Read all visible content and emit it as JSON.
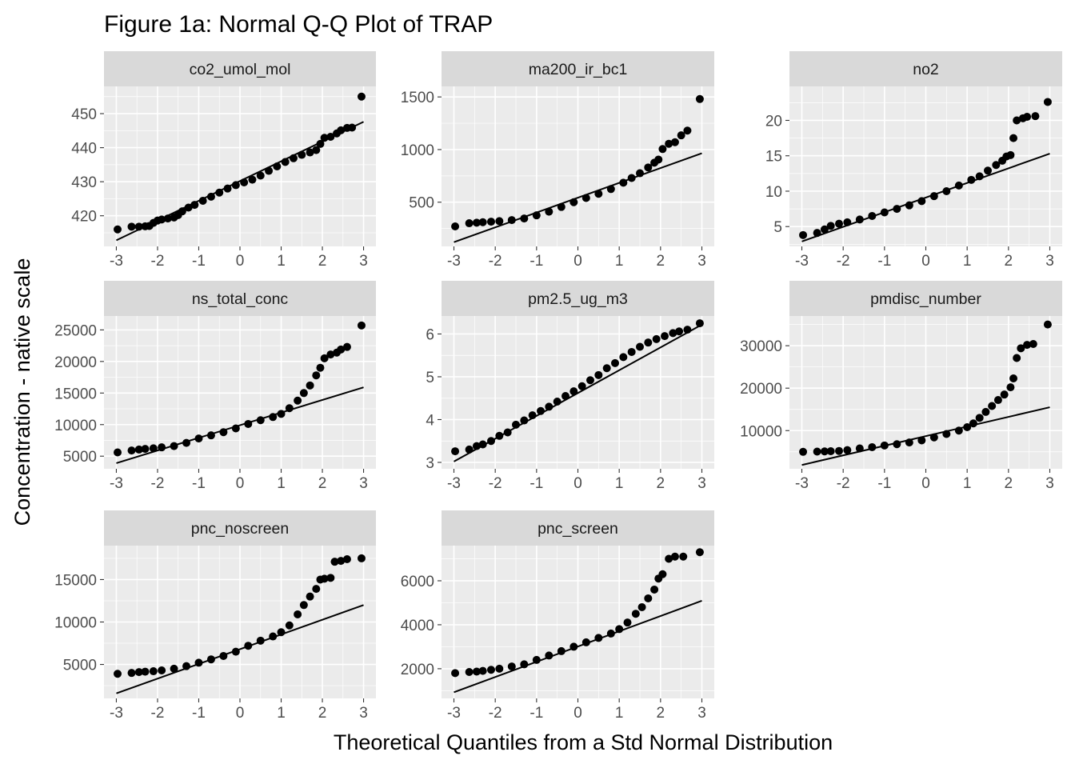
{
  "chart_data": {
    "type": "scatter",
    "title": "Figure 1a: Normal Q-Q Plot of TRAP",
    "xlabel": "Theoretical Quantiles from a Std Normal Distribution",
    "ylabel": "Concentration - native scale",
    "grid": true,
    "xlim": [
      -3.3,
      3.3
    ],
    "x_ticks": [
      -3,
      -2,
      -1,
      0,
      1,
      2,
      3
    ],
    "panels": [
      {
        "name": "co2_umol_mol",
        "ylim": [
          411,
          458
        ],
        "y_ticks": [
          420,
          430,
          440,
          450
        ],
        "ref_line": [
          [
            -3,
            412.8
          ],
          [
            3,
            447.6
          ]
        ],
        "points": [
          [
            -2.97,
            416
          ],
          [
            -2.63,
            416.8
          ],
          [
            -2.45,
            416.8
          ],
          [
            -2.3,
            416.9
          ],
          [
            -2.2,
            417
          ],
          [
            -2.1,
            417.9
          ],
          [
            -2.0,
            418.6
          ],
          [
            -1.9,
            418.9
          ],
          [
            -1.75,
            419.2
          ],
          [
            -1.6,
            419.5
          ],
          [
            -1.5,
            420.2
          ],
          [
            -1.4,
            421.3
          ],
          [
            -1.25,
            422.4
          ],
          [
            -1.1,
            423.2
          ],
          [
            -0.9,
            424.4
          ],
          [
            -0.7,
            425.6
          ],
          [
            -0.5,
            426.8
          ],
          [
            -0.3,
            428
          ],
          [
            -0.1,
            429
          ],
          [
            0.1,
            429.8
          ],
          [
            0.3,
            430.6
          ],
          [
            0.5,
            431.8
          ],
          [
            0.7,
            433.2
          ],
          [
            0.9,
            434.5
          ],
          [
            1.1,
            435.8
          ],
          [
            1.3,
            436.9
          ],
          [
            1.5,
            437.9
          ],
          [
            1.7,
            438.6
          ],
          [
            1.85,
            439.3
          ],
          [
            1.95,
            441.1
          ],
          [
            2.05,
            442.9
          ],
          [
            2.2,
            443.2
          ],
          [
            2.35,
            444.2
          ],
          [
            2.45,
            445.1
          ],
          [
            2.6,
            445.8
          ],
          [
            2.72,
            445.9
          ],
          [
            2.95,
            455
          ]
        ]
      },
      {
        "name": "ma200_ir_bc1",
        "ylim": [
          80,
          1600
        ],
        "y_ticks": [
          500,
          1000,
          1500
        ],
        "ref_line": [
          [
            -3,
            120
          ],
          [
            3,
            965
          ]
        ],
        "points": [
          [
            -2.97,
            270
          ],
          [
            -2.63,
            300
          ],
          [
            -2.45,
            305
          ],
          [
            -2.3,
            310
          ],
          [
            -2.1,
            315
          ],
          [
            -1.9,
            320
          ],
          [
            -1.6,
            330
          ],
          [
            -1.3,
            345
          ],
          [
            -1.0,
            375
          ],
          [
            -0.7,
            410
          ],
          [
            -0.4,
            455
          ],
          [
            -0.1,
            500
          ],
          [
            0.2,
            540
          ],
          [
            0.5,
            580
          ],
          [
            0.8,
            625
          ],
          [
            1.1,
            685
          ],
          [
            1.3,
            730
          ],
          [
            1.5,
            775
          ],
          [
            1.7,
            830
          ],
          [
            1.85,
            875
          ],
          [
            1.95,
            905
          ],
          [
            2.05,
            1005
          ],
          [
            2.2,
            1055
          ],
          [
            2.35,
            1070
          ],
          [
            2.5,
            1135
          ],
          [
            2.65,
            1180
          ],
          [
            2.95,
            1480
          ]
        ]
      },
      {
        "name": "no2",
        "ylim": [
          2.2,
          24.8
        ],
        "y_ticks": [
          5,
          10,
          15,
          20
        ],
        "ref_line": [
          [
            -3,
            2.9
          ],
          [
            3,
            15.3
          ]
        ],
        "points": [
          [
            -2.97,
            3.8
          ],
          [
            -2.63,
            4.1
          ],
          [
            -2.45,
            4.6
          ],
          [
            -2.3,
            5.1
          ],
          [
            -2.1,
            5.4
          ],
          [
            -1.9,
            5.6
          ],
          [
            -1.6,
            6
          ],
          [
            -1.3,
            6.5
          ],
          [
            -1.0,
            7
          ],
          [
            -0.7,
            7.5
          ],
          [
            -0.4,
            8
          ],
          [
            -0.1,
            8.6
          ],
          [
            0.2,
            9.3
          ],
          [
            0.5,
            10
          ],
          [
            0.8,
            10.8
          ],
          [
            1.1,
            11.6
          ],
          [
            1.3,
            12.1
          ],
          [
            1.5,
            12.9
          ],
          [
            1.7,
            13.7
          ],
          [
            1.85,
            14.3
          ],
          [
            1.95,
            14.9
          ],
          [
            2.05,
            15.1
          ],
          [
            2.12,
            17.5
          ],
          [
            2.2,
            20
          ],
          [
            2.35,
            20.3
          ],
          [
            2.45,
            20.5
          ],
          [
            2.65,
            20.6
          ],
          [
            2.95,
            22.6
          ]
        ]
      },
      {
        "name": "ns_total_conc",
        "ylim": [
          3000,
          27200
        ],
        "y_ticks": [
          5000,
          10000,
          15000,
          20000,
          25000
        ],
        "ref_line": [
          [
            -3,
            3900
          ],
          [
            3,
            15900
          ]
        ],
        "points": [
          [
            -2.97,
            5600
          ],
          [
            -2.63,
            5900
          ],
          [
            -2.45,
            6050
          ],
          [
            -2.3,
            6150
          ],
          [
            -2.1,
            6250
          ],
          [
            -1.9,
            6400
          ],
          [
            -1.6,
            6600
          ],
          [
            -1.3,
            7100
          ],
          [
            -1.0,
            7800
          ],
          [
            -0.7,
            8300
          ],
          [
            -0.4,
            8800
          ],
          [
            -0.1,
            9400
          ],
          [
            0.2,
            10100
          ],
          [
            0.5,
            10700
          ],
          [
            0.8,
            11200
          ],
          [
            1.0,
            11700
          ],
          [
            1.2,
            12600
          ],
          [
            1.4,
            13800
          ],
          [
            1.55,
            15000
          ],
          [
            1.7,
            16200
          ],
          [
            1.85,
            17800
          ],
          [
            1.95,
            19000
          ],
          [
            2.05,
            20500
          ],
          [
            2.2,
            21100
          ],
          [
            2.35,
            21400
          ],
          [
            2.45,
            21900
          ],
          [
            2.6,
            22300
          ],
          [
            2.95,
            25700
          ]
        ]
      },
      {
        "name": "pm2.5_ug_m3",
        "ylim": [
          2.85,
          6.42
        ],
        "y_ticks": [
          3,
          4,
          5,
          6
        ],
        "ref_line": [
          [
            -3,
            3.02
          ],
          [
            3,
            6.22
          ]
        ],
        "points": [
          [
            -2.97,
            3.26
          ],
          [
            -2.63,
            3.3
          ],
          [
            -2.45,
            3.38
          ],
          [
            -2.3,
            3.42
          ],
          [
            -2.1,
            3.5
          ],
          [
            -1.9,
            3.62
          ],
          [
            -1.7,
            3.7
          ],
          [
            -1.5,
            3.88
          ],
          [
            -1.3,
            3.98
          ],
          [
            -1.1,
            4.1
          ],
          [
            -0.9,
            4.2
          ],
          [
            -0.7,
            4.3
          ],
          [
            -0.5,
            4.42
          ],
          [
            -0.3,
            4.55
          ],
          [
            -0.1,
            4.66
          ],
          [
            0.1,
            4.78
          ],
          [
            0.3,
            4.92
          ],
          [
            0.5,
            5.04
          ],
          [
            0.7,
            5.2
          ],
          [
            0.9,
            5.32
          ],
          [
            1.1,
            5.46
          ],
          [
            1.3,
            5.58
          ],
          [
            1.5,
            5.7
          ],
          [
            1.7,
            5.8
          ],
          [
            1.9,
            5.88
          ],
          [
            2.1,
            5.95
          ],
          [
            2.3,
            6.02
          ],
          [
            2.45,
            6.06
          ],
          [
            2.65,
            6.1
          ],
          [
            2.95,
            6.25
          ]
        ]
      },
      {
        "name": "pmdisc_number",
        "ylim": [
          1000,
          37000
        ],
        "y_ticks": [
          10000,
          20000,
          30000
        ],
        "ref_line": [
          [
            -3,
            1900
          ],
          [
            3,
            15500
          ]
        ],
        "points": [
          [
            -2.97,
            5000
          ],
          [
            -2.63,
            5050
          ],
          [
            -2.45,
            5100
          ],
          [
            -2.3,
            5150
          ],
          [
            -2.1,
            5200
          ],
          [
            -1.9,
            5400
          ],
          [
            -1.6,
            5800
          ],
          [
            -1.3,
            6100
          ],
          [
            -1.0,
            6500
          ],
          [
            -0.7,
            6800
          ],
          [
            -0.4,
            7200
          ],
          [
            -0.1,
            7700
          ],
          [
            0.2,
            8400
          ],
          [
            0.5,
            9200
          ],
          [
            0.8,
            10000
          ],
          [
            1.0,
            10800
          ],
          [
            1.15,
            11700
          ],
          [
            1.3,
            13000
          ],
          [
            1.45,
            14400
          ],
          [
            1.6,
            15800
          ],
          [
            1.75,
            17200
          ],
          [
            1.9,
            18500
          ],
          [
            2.05,
            20200
          ],
          [
            2.12,
            22300
          ],
          [
            2.2,
            27100
          ],
          [
            2.3,
            29400
          ],
          [
            2.45,
            30200
          ],
          [
            2.6,
            30400
          ],
          [
            2.95,
            35000
          ]
        ]
      },
      {
        "name": "pnc_noscreen",
        "ylim": [
          1000,
          19000
        ],
        "y_ticks": [
          5000,
          10000,
          15000
        ],
        "ref_line": [
          [
            -3,
            1600
          ],
          [
            3,
            12000
          ]
        ],
        "points": [
          [
            -2.97,
            3900
          ],
          [
            -2.63,
            4000
          ],
          [
            -2.45,
            4100
          ],
          [
            -2.3,
            4150
          ],
          [
            -2.1,
            4200
          ],
          [
            -1.9,
            4300
          ],
          [
            -1.6,
            4500
          ],
          [
            -1.3,
            4800
          ],
          [
            -1.0,
            5200
          ],
          [
            -0.7,
            5600
          ],
          [
            -0.4,
            6000
          ],
          [
            -0.1,
            6500
          ],
          [
            0.2,
            7200
          ],
          [
            0.5,
            7800
          ],
          [
            0.8,
            8300
          ],
          [
            1.0,
            8800
          ],
          [
            1.2,
            9600
          ],
          [
            1.4,
            10900
          ],
          [
            1.55,
            12000
          ],
          [
            1.7,
            13000
          ],
          [
            1.85,
            13900
          ],
          [
            1.95,
            15000
          ],
          [
            2.05,
            15100
          ],
          [
            2.2,
            15200
          ],
          [
            2.3,
            17100
          ],
          [
            2.45,
            17200
          ],
          [
            2.6,
            17400
          ],
          [
            2.95,
            17500
          ]
        ]
      },
      {
        "name": "pnc_screen",
        "ylim": [
          650,
          7600
        ],
        "y_ticks": [
          2000,
          4000,
          6000
        ],
        "ref_line": [
          [
            -3,
            930
          ],
          [
            3,
            5090
          ]
        ],
        "points": [
          [
            -2.97,
            1800
          ],
          [
            -2.63,
            1850
          ],
          [
            -2.45,
            1870
          ],
          [
            -2.3,
            1900
          ],
          [
            -2.1,
            1950
          ],
          [
            -1.9,
            2000
          ],
          [
            -1.6,
            2100
          ],
          [
            -1.3,
            2200
          ],
          [
            -1.0,
            2400
          ],
          [
            -0.7,
            2600
          ],
          [
            -0.4,
            2800
          ],
          [
            -0.1,
            3000
          ],
          [
            0.2,
            3200
          ],
          [
            0.5,
            3400
          ],
          [
            0.8,
            3600
          ],
          [
            1.0,
            3800
          ],
          [
            1.2,
            4100
          ],
          [
            1.4,
            4500
          ],
          [
            1.55,
            4800
          ],
          [
            1.7,
            5200
          ],
          [
            1.85,
            5600
          ],
          [
            1.95,
            6100
          ],
          [
            2.05,
            6300
          ],
          [
            2.2,
            7000
          ],
          [
            2.35,
            7100
          ],
          [
            2.55,
            7100
          ],
          [
            2.95,
            7300
          ]
        ]
      }
    ]
  }
}
